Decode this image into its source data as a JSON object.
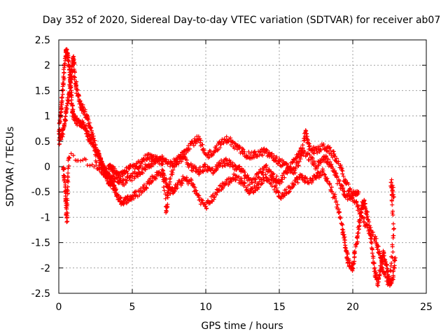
{
  "chart_data": {
    "type": "scatter",
    "title": "Day 352 of 2020, Sidereal Day-to-day VTEC variation (SDTVAR) for receiver ab07",
    "xlabel": "GPS time / hours",
    "ylabel": "SDTVAR / TECUs",
    "xlim": [
      0,
      25
    ],
    "ylim": [
      -2.5,
      2.5
    ],
    "xticks": [
      0,
      5,
      10,
      15,
      20,
      25
    ],
    "xtick_labels": [
      "0",
      "5",
      "10",
      "15",
      "20",
      "25"
    ],
    "yticks": [
      -2.5,
      -2,
      -1.5,
      -1,
      -0.5,
      0,
      0.5,
      1,
      1.5,
      2,
      2.5
    ],
    "ytick_labels": [
      "-2.5",
      "-2",
      "-1.5",
      "-1",
      "-0.5",
      "0",
      "0.5",
      "1",
      "1.5",
      "2",
      "2.5"
    ],
    "grid": true,
    "marker": "+",
    "color": "#ff0000",
    "series": [
      {
        "name": "track-1",
        "points": [
          [
            0.0,
            0.55
          ],
          [
            0.1,
            1.0
          ],
          [
            0.2,
            1.3
          ],
          [
            0.3,
            1.6
          ],
          [
            0.4,
            2.0
          ],
          [
            0.5,
            2.3
          ],
          [
            0.6,
            2.2
          ],
          [
            0.7,
            2.0
          ],
          [
            0.8,
            1.6
          ],
          [
            0.9,
            1.2
          ],
          [
            1.0,
            1.0
          ],
          [
            1.2,
            0.9
          ],
          [
            1.5,
            0.85
          ],
          [
            1.8,
            0.8
          ],
          [
            2.0,
            0.6
          ],
          [
            2.2,
            0.5
          ],
          [
            2.5,
            0.3
          ],
          [
            2.8,
            0.15
          ],
          [
            3.0,
            0.0
          ],
          [
            3.2,
            -0.2
          ],
          [
            3.4,
            -0.3
          ],
          [
            3.6,
            -0.35
          ],
          [
            3.8,
            -0.45
          ],
          [
            4.0,
            -0.6
          ],
          [
            4.3,
            -0.7
          ],
          [
            4.6,
            -0.65
          ],
          [
            5.0,
            -0.6
          ],
          [
            5.5,
            -0.5
          ],
          [
            6.0,
            -0.35
          ],
          [
            6.5,
            -0.2
          ],
          [
            7.0,
            -0.1
          ],
          [
            7.3,
            -0.3
          ],
          [
            7.6,
            -0.5
          ],
          [
            8.0,
            -0.4
          ],
          [
            8.5,
            -0.25
          ],
          [
            9.0,
            -0.3
          ],
          [
            9.5,
            -0.6
          ],
          [
            10.0,
            -0.8
          ],
          [
            10.5,
            -0.6
          ],
          [
            11.0,
            -0.4
          ],
          [
            11.5,
            -0.3
          ],
          [
            12.0,
            -0.2
          ],
          [
            12.5,
            -0.3
          ],
          [
            13.0,
            -0.5
          ],
          [
            13.5,
            -0.4
          ],
          [
            14.0,
            -0.2
          ],
          [
            14.5,
            -0.3
          ],
          [
            15.0,
            -0.6
          ],
          [
            15.5,
            -0.5
          ],
          [
            16.0,
            -0.3
          ],
          [
            16.5,
            -0.2
          ],
          [
            17.0,
            -0.3
          ],
          [
            17.5,
            -0.2
          ],
          [
            18.0,
            -0.1
          ],
          [
            18.5,
            -0.4
          ],
          [
            19.0,
            -0.8
          ],
          [
            19.3,
            -1.2
          ],
          [
            19.5,
            -1.6
          ],
          [
            19.7,
            -1.9
          ],
          [
            20.0,
            -2.0
          ],
          [
            20.2,
            -1.6
          ],
          [
            20.4,
            -1.2
          ],
          [
            20.6,
            -0.8
          ],
          [
            20.8,
            -0.7
          ],
          [
            21.0,
            -1.0
          ],
          [
            21.3,
            -1.6
          ],
          [
            21.5,
            -2.1
          ],
          [
            21.7,
            -2.3
          ],
          [
            21.9,
            -2.0
          ],
          [
            22.1,
            -1.7
          ],
          [
            22.3,
            -2.0
          ],
          [
            22.5,
            -2.3
          ],
          [
            22.7,
            -2.2
          ],
          [
            22.9,
            -1.8
          ]
        ]
      },
      {
        "name": "track-2",
        "points": [
          [
            0.0,
            0.5
          ],
          [
            0.2,
            0.6
          ],
          [
            0.4,
            0.8
          ],
          [
            0.5,
            1.1
          ],
          [
            0.7,
            1.4
          ],
          [
            0.8,
            1.7
          ],
          [
            0.9,
            1.9
          ],
          [
            1.0,
            2.2
          ],
          [
            1.1,
            1.7
          ],
          [
            1.3,
            1.4
          ],
          [
            1.5,
            1.2
          ],
          [
            1.7,
            1.1
          ],
          [
            2.0,
            0.9
          ],
          [
            2.3,
            0.6
          ],
          [
            2.6,
            0.3
          ],
          [
            2.9,
            0.1
          ],
          [
            3.2,
            -0.1
          ],
          [
            3.5,
            0.0
          ],
          [
            3.8,
            -0.1
          ],
          [
            4.1,
            -0.2
          ],
          [
            4.5,
            -0.1
          ],
          [
            5.0,
            0.0
          ],
          [
            5.5,
            0.05
          ],
          [
            6.0,
            0.2
          ],
          [
            6.5,
            0.15
          ],
          [
            7.0,
            0.1
          ],
          [
            7.5,
            0.05
          ],
          [
            8.0,
            0.1
          ],
          [
            8.5,
            0.3
          ],
          [
            9.0,
            0.45
          ],
          [
            9.5,
            0.55
          ],
          [
            10.0,
            0.2
          ],
          [
            10.5,
            0.3
          ],
          [
            11.0,
            0.45
          ],
          [
            11.5,
            0.55
          ],
          [
            12.0,
            0.4
          ],
          [
            12.5,
            0.3
          ],
          [
            13.0,
            0.2
          ],
          [
            13.5,
            0.25
          ],
          [
            14.0,
            0.3
          ],
          [
            14.5,
            0.2
          ],
          [
            15.0,
            0.1
          ],
          [
            15.5,
            0.0
          ],
          [
            16.0,
            -0.1
          ],
          [
            16.5,
            0.2
          ],
          [
            16.8,
            0.7
          ],
          [
            17.0,
            0.4
          ],
          [
            17.5,
            0.3
          ],
          [
            18.0,
            0.4
          ],
          [
            18.5,
            0.3
          ],
          [
            19.0,
            0.1
          ],
          [
            19.5,
            -0.3
          ],
          [
            20.0,
            -0.6
          ],
          [
            20.5,
            -0.9
          ],
          [
            21.0,
            -1.2
          ],
          [
            21.5,
            -1.4
          ],
          [
            21.8,
            -1.7
          ],
          [
            22.1,
            -2.1
          ],
          [
            22.5,
            -2.35
          ],
          [
            22.8,
            -1.3
          ],
          [
            22.6,
            -0.3
          ],
          [
            22.8,
            -0.6
          ]
        ]
      },
      {
        "name": "track-3",
        "points": [
          [
            0.3,
            0.0
          ],
          [
            0.4,
            -0.3
          ],
          [
            0.5,
            -0.7
          ],
          [
            0.55,
            -1.05
          ],
          [
            0.6,
            -0.4
          ],
          [
            0.7,
            0.2
          ],
          [
            2.5,
            0.05
          ],
          [
            3.0,
            -0.1
          ],
          [
            3.5,
            -0.2
          ],
          [
            4.0,
            -0.3
          ],
          [
            4.5,
            -0.3
          ],
          [
            5.0,
            -0.2
          ],
          [
            5.5,
            -0.1
          ],
          [
            6.0,
            0.0
          ],
          [
            6.5,
            0.1
          ],
          [
            7.0,
            0.2
          ],
          [
            7.3,
            -0.9
          ],
          [
            7.5,
            -0.3
          ],
          [
            8.0,
            0.1
          ],
          [
            8.5,
            0.2
          ],
          [
            9.0,
            0.0
          ],
          [
            9.5,
            -0.1
          ],
          [
            10.0,
            0.0
          ],
          [
            10.5,
            -0.1
          ],
          [
            11.0,
            0.05
          ],
          [
            11.5,
            0.1
          ],
          [
            12.0,
            0.0
          ],
          [
            12.5,
            -0.1
          ],
          [
            13.0,
            -0.3
          ],
          [
            13.5,
            -0.2
          ],
          [
            14.0,
            0.0
          ],
          [
            14.5,
            -0.15
          ],
          [
            15.0,
            -0.3
          ],
          [
            15.5,
            -0.1
          ],
          [
            16.0,
            0.1
          ],
          [
            16.5,
            0.3
          ],
          [
            17.0,
            0.2
          ],
          [
            17.5,
            0.0
          ],
          [
            18.0,
            0.2
          ],
          [
            18.3,
            0.1
          ],
          [
            18.7,
            -0.1
          ],
          [
            19.2,
            -0.4
          ],
          [
            19.6,
            -0.6
          ],
          [
            20.0,
            -0.55
          ],
          [
            20.4,
            -0.5
          ]
        ]
      }
    ]
  }
}
